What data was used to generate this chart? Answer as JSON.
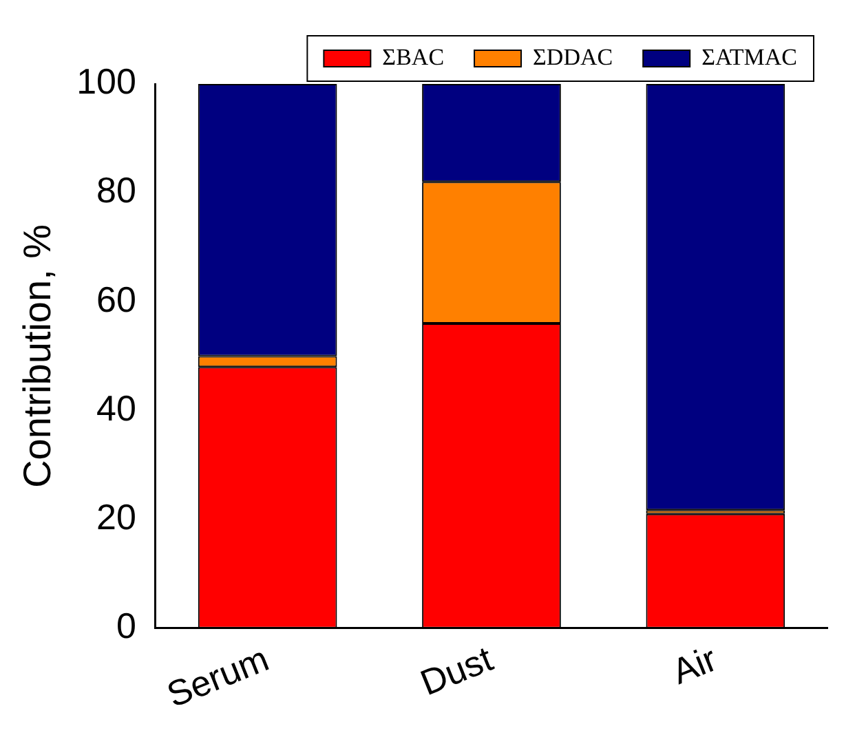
{
  "chart_data": {
    "type": "bar",
    "stacked": true,
    "ylabel": "Contribution, %",
    "categories": [
      "Serum",
      "Dust",
      "Air"
    ],
    "series": [
      {
        "name": "ΣBAC",
        "color": "#ff0000",
        "values": [
          48,
          56,
          21
        ]
      },
      {
        "name": "ΣDDAC",
        "color": "#ff8000",
        "values": [
          2,
          26,
          0.7
        ]
      },
      {
        "name": "ΣATMAC",
        "color": "#000080",
        "values": [
          50,
          18,
          78.3
        ]
      }
    ],
    "ylim": [
      0,
      100
    ],
    "yticks": [
      0,
      20,
      40,
      60,
      80,
      100
    ],
    "grid": false,
    "legend": "top right"
  }
}
